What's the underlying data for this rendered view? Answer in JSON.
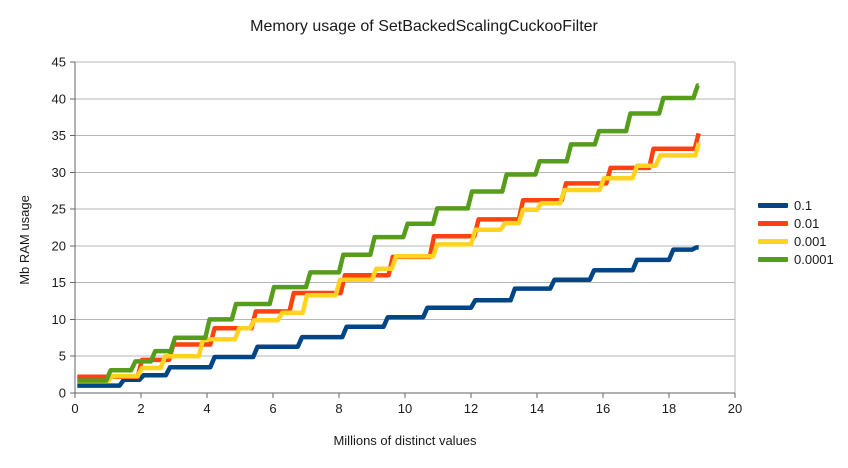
{
  "chart_data": {
    "type": "line",
    "title": "Memory usage of SetBackedScalingCuckooFilter",
    "xlabel": "Millions of distinct values",
    "ylabel": "Mb RAM usage",
    "xlim": [
      0,
      20
    ],
    "ylim": [
      0,
      45
    ],
    "x_ticks": [
      0,
      2,
      4,
      6,
      8,
      10,
      12,
      14,
      16,
      18,
      20
    ],
    "y_ticks": [
      0,
      5,
      10,
      15,
      20,
      25,
      30,
      35,
      40,
      45
    ],
    "grid": "horizontal",
    "legend_position": "right",
    "line_width": 4.5,
    "colors": {
      "grid": "#b5b5b5",
      "axis": "#666666",
      "text": "#1a1a1a",
      "background": "#ffffff"
    },
    "series": [
      {
        "name": "0.1",
        "color": "#004586",
        "end_x": 18.9,
        "steps": [
          [
            0.07,
            1.0
          ],
          [
            1.35,
            1.8
          ],
          [
            1.95,
            2.4
          ],
          [
            2.75,
            3.5
          ],
          [
            4.1,
            4.9
          ],
          [
            5.4,
            6.3
          ],
          [
            6.75,
            7.6
          ],
          [
            8.1,
            9.0
          ],
          [
            9.35,
            10.3
          ],
          [
            10.55,
            11.6
          ],
          [
            12.0,
            12.6
          ],
          [
            13.2,
            14.2
          ],
          [
            14.4,
            15.4
          ],
          [
            15.6,
            16.7
          ],
          [
            16.9,
            18.1
          ],
          [
            18.0,
            19.5
          ],
          [
            18.7,
            19.8
          ]
        ]
      },
      {
        "name": "0.01",
        "color": "#FF420E",
        "end_x": 18.9,
        "steps": [
          [
            0.07,
            2.2
          ],
          [
            1.9,
            4.5
          ],
          [
            2.85,
            6.6
          ],
          [
            4.1,
            8.8
          ],
          [
            5.35,
            11.1
          ],
          [
            6.5,
            13.6
          ],
          [
            8.05,
            16.0
          ],
          [
            9.5,
            18.5
          ],
          [
            10.75,
            21.3
          ],
          [
            12.1,
            23.6
          ],
          [
            13.45,
            26.2
          ],
          [
            14.75,
            28.5
          ],
          [
            16.1,
            30.6
          ],
          [
            17.4,
            33.2
          ],
          [
            18.78,
            35.3
          ]
        ]
      },
      {
        "name": "0.001",
        "color": "#FFD320",
        "end_x": 18.9,
        "steps": [
          [
            0.07,
            1.6
          ],
          [
            1.0,
            2.3
          ],
          [
            1.9,
            3.4
          ],
          [
            2.6,
            5.0
          ],
          [
            3.75,
            7.3
          ],
          [
            4.85,
            8.8
          ],
          [
            5.3,
            9.9
          ],
          [
            6.15,
            10.9
          ],
          [
            6.9,
            13.3
          ],
          [
            7.9,
            15.4
          ],
          [
            9.0,
            16.9
          ],
          [
            9.6,
            18.6
          ],
          [
            10.85,
            20.2
          ],
          [
            12.0,
            22.2
          ],
          [
            12.9,
            23.1
          ],
          [
            13.45,
            24.9
          ],
          [
            14.0,
            25.8
          ],
          [
            14.7,
            27.6
          ],
          [
            15.9,
            29.2
          ],
          [
            16.9,
            30.9
          ],
          [
            17.6,
            32.3
          ],
          [
            18.8,
            34.0
          ]
        ]
      },
      {
        "name": "0.0001",
        "color": "#579D1C",
        "end_x": 18.9,
        "steps": [
          [
            0.07,
            1.7
          ],
          [
            0.95,
            3.1
          ],
          [
            1.7,
            4.3
          ],
          [
            2.3,
            5.7
          ],
          [
            2.9,
            7.5
          ],
          [
            3.95,
            10.0
          ],
          [
            4.75,
            12.1
          ],
          [
            5.9,
            14.4
          ],
          [
            7.0,
            16.4
          ],
          [
            8.0,
            18.8
          ],
          [
            8.95,
            21.2
          ],
          [
            9.95,
            23.0
          ],
          [
            10.85,
            25.1
          ],
          [
            11.9,
            27.4
          ],
          [
            12.95,
            29.7
          ],
          [
            13.95,
            31.5
          ],
          [
            14.9,
            33.8
          ],
          [
            15.75,
            35.6
          ],
          [
            16.7,
            38.0
          ],
          [
            17.7,
            40.1
          ],
          [
            18.74,
            41.8
          ]
        ]
      }
    ]
  }
}
